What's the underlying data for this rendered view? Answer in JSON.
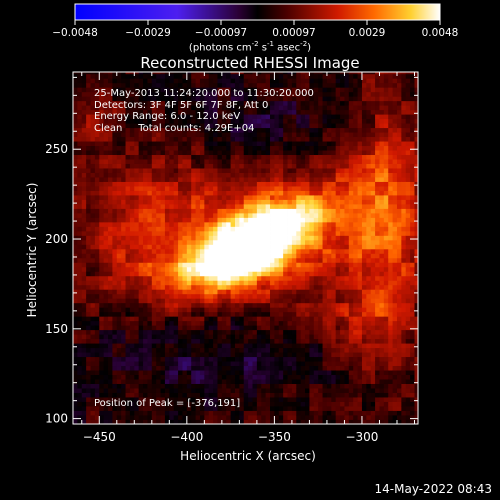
{
  "chart_data": {
    "type": "heatmap",
    "title": "Reconstructed RHESSI Image",
    "xlabel": "Heliocentric X (arcsec)",
    "ylabel": "Heliocentric Y (arcsec)",
    "xlim": [
      -465,
      -268
    ],
    "ylim": [
      97,
      293
    ],
    "xticks": [
      -450,
      -400,
      -350,
      -300
    ],
    "yticks": [
      100,
      150,
      200,
      250
    ],
    "colorbar": {
      "range": [
        -0.0048,
        0.0048
      ],
      "ticks": [
        "-0.0048",
        "-0.0029",
        "-0.00097",
        "0.00097",
        "0.0029",
        "0.0048"
      ],
      "units_text": "(photons cm",
      "units_exp1": "-2",
      "units_mid": " s",
      "units_exp2": "-1",
      "units_mid2": " asec",
      "units_exp3": "-2",
      "units_end": ")"
    },
    "annotations": {
      "time": "25-May-2013 11:24:20.000 to 11:30:20.000",
      "detectors": "Detectors: 3F 4F 5F 6F 7F 8F, Att 0",
      "energy": "Energy Range: 6.0 - 12.0 keV",
      "clean": "Clean     Total counts: 4.29E+04",
      "peak": "Position of Peak = [-376,191]"
    },
    "peak_position": [
      -376,
      191
    ],
    "sources": [
      {
        "x": -364,
        "y": 197,
        "sx": 26,
        "sy": 11,
        "angle_deg": 28,
        "amp": 0.0052
      },
      {
        "x": -345,
        "y": 200,
        "sx": 55,
        "sy": 26,
        "angle_deg": 15,
        "amp": 0.0022
      },
      {
        "x": -420,
        "y": 210,
        "sx": 28,
        "sy": 30,
        "angle_deg": 0,
        "amp": 0.0014
      },
      {
        "x": -285,
        "y": 205,
        "sx": 14,
        "sy": 55,
        "angle_deg": 0,
        "amp": 0.0016
      },
      {
        "x": -455,
        "y": 265,
        "sx": 10,
        "sy": 12,
        "angle_deg": 0,
        "amp": 0.0008
      },
      {
        "x": -300,
        "y": 155,
        "sx": 15,
        "sy": 12,
        "angle_deg": 0,
        "amp": 0.001
      },
      {
        "x": -390,
        "y": 140,
        "sx": 40,
        "sy": 20,
        "angle_deg": 0,
        "amp": -0.001
      },
      {
        "x": -360,
        "y": 265,
        "sx": 30,
        "sy": 15,
        "angle_deg": 0,
        "amp": -0.0007
      }
    ]
  },
  "footer": {
    "date": "14-May-2022 08:43"
  }
}
